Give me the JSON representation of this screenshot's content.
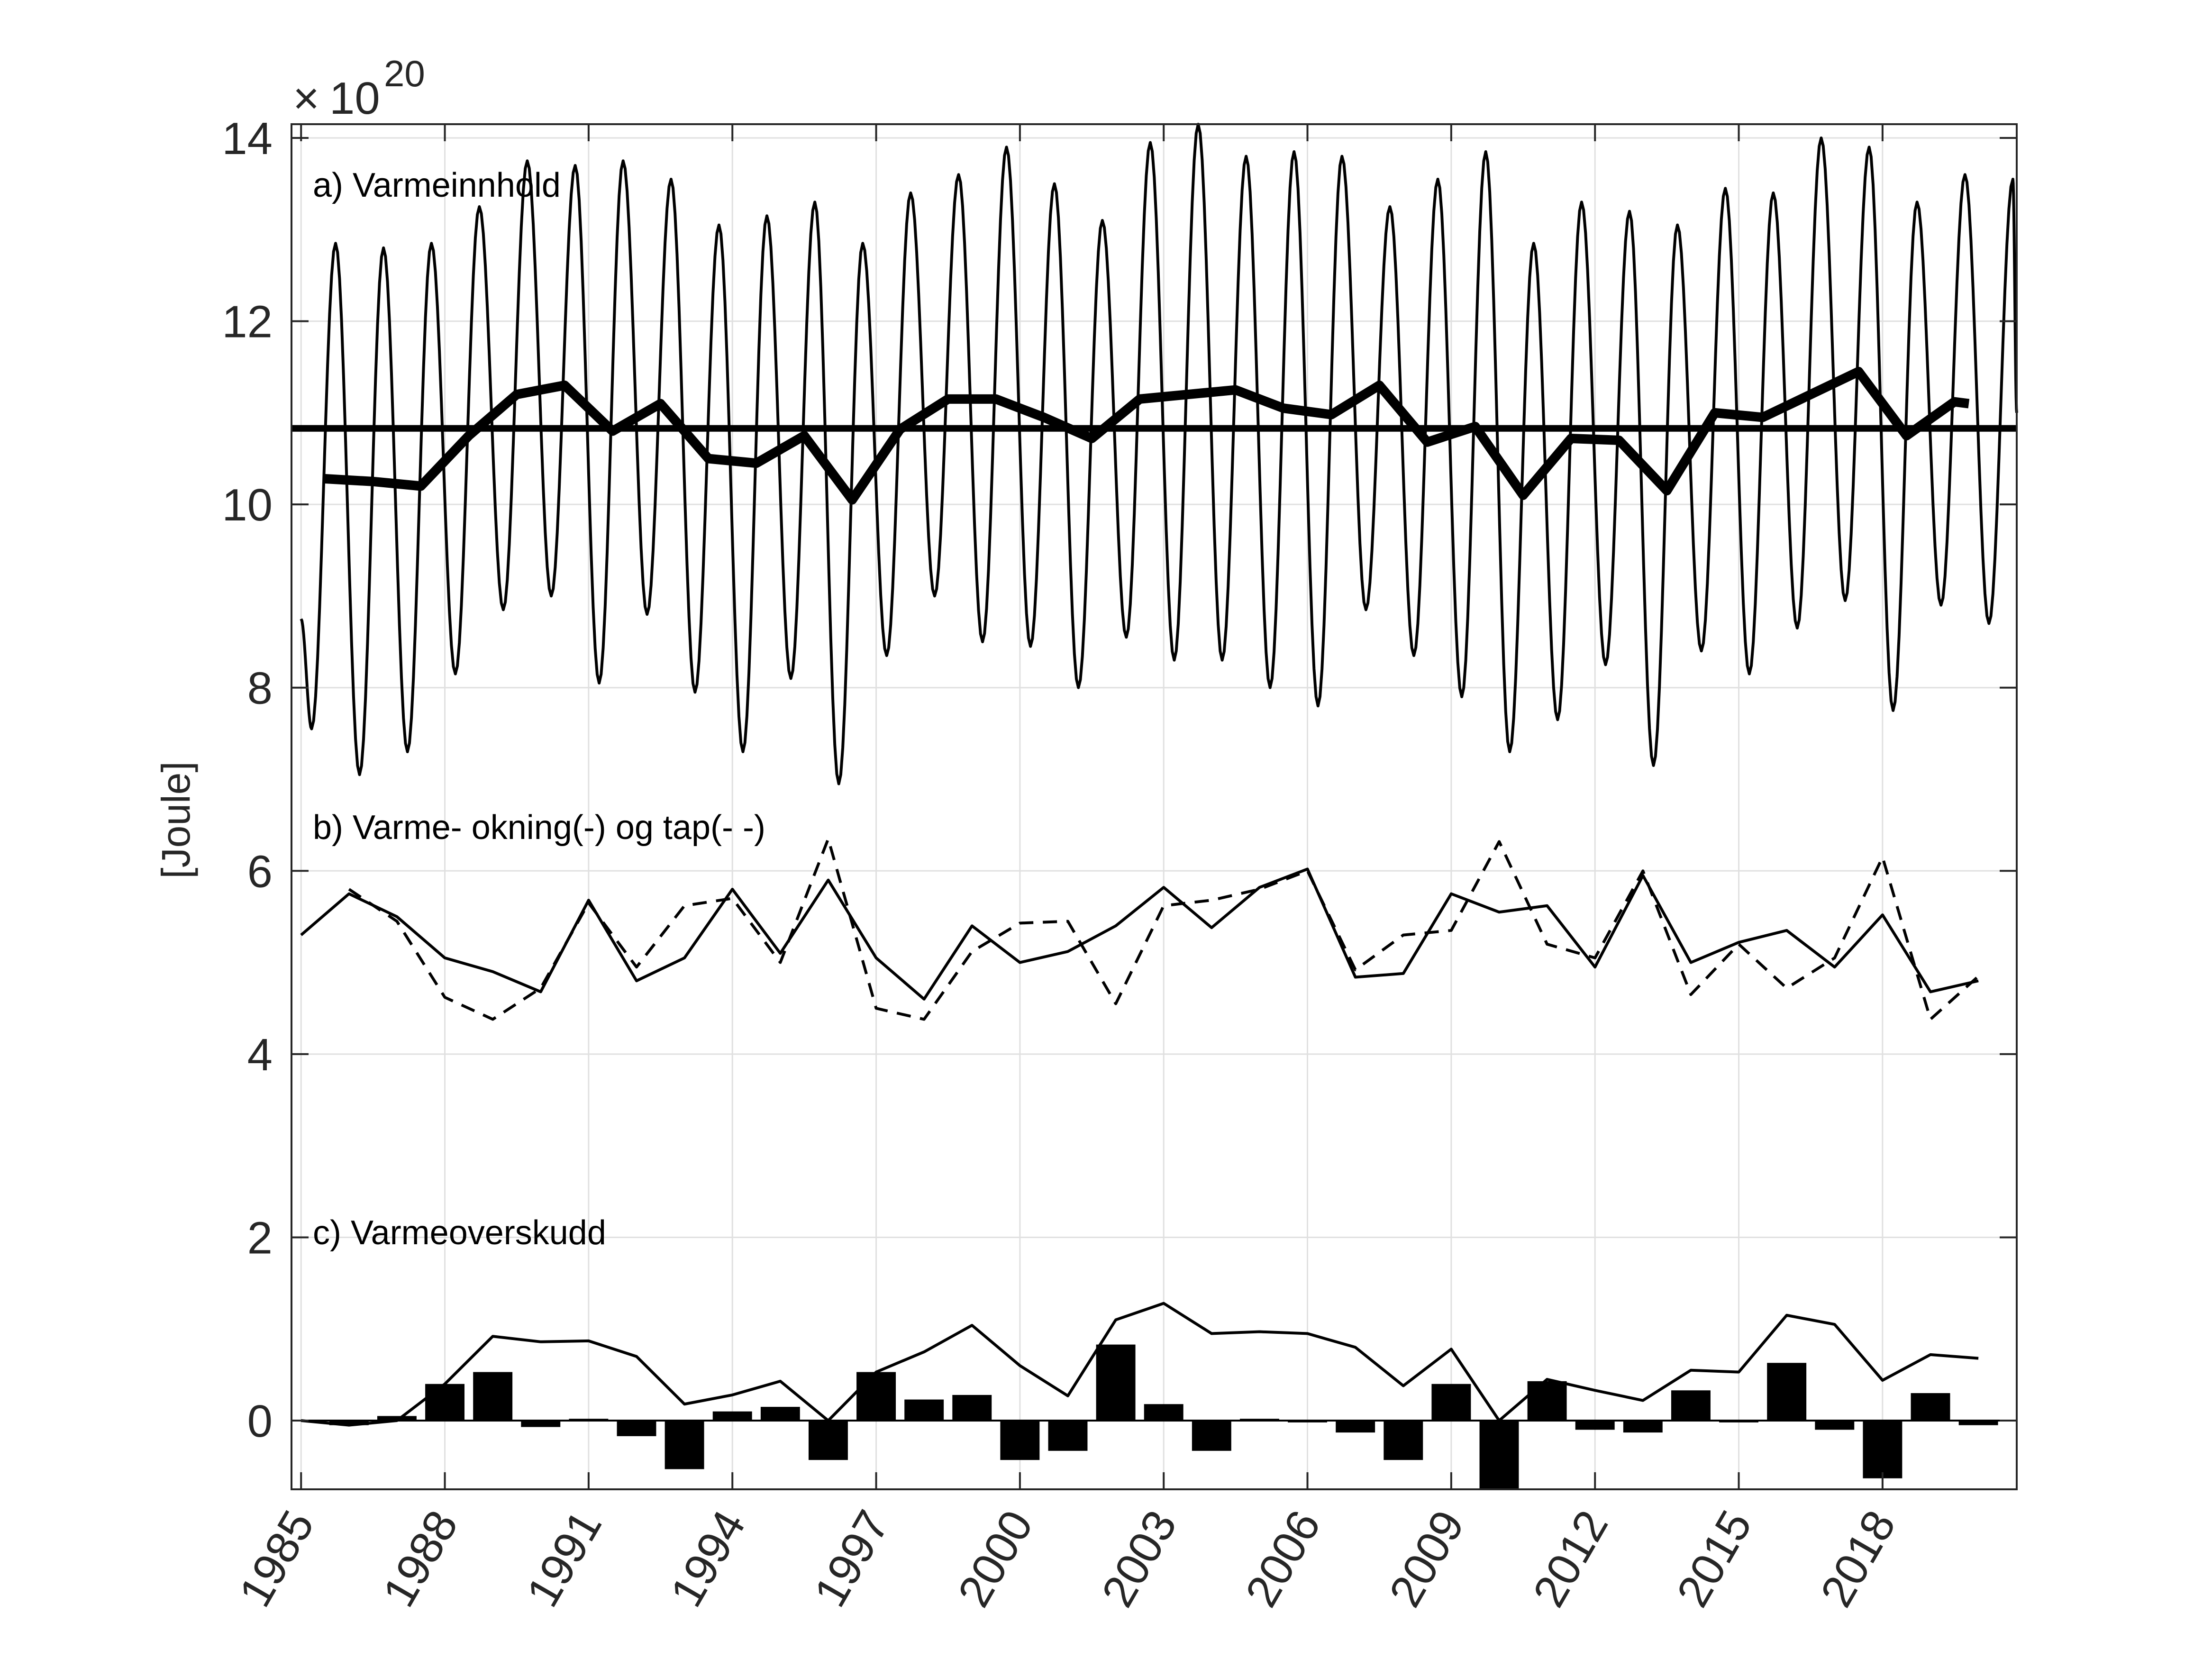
{
  "chart_data": {
    "type": "line",
    "ylabel": "[Joule]",
    "y_exponent_base": "10",
    "y_exponent_power": "20",
    "xlim": [
      1984.8,
      2020.8
    ],
    "ylim": [
      -0.75,
      14.15
    ],
    "grid": true,
    "x_ticks": [
      1985,
      1988,
      1991,
      1994,
      1997,
      2000,
      2003,
      2006,
      2009,
      2012,
      2015,
      2018
    ],
    "x_tick_labels": [
      "1985",
      "1988",
      "1991",
      "1994",
      "1997",
      "2000",
      "2003",
      "2006",
      "2009",
      "2012",
      "2015",
      "2018"
    ],
    "y_ticks": [
      0,
      2,
      4,
      6,
      8,
      10,
      12,
      14
    ],
    "y_tick_labels": [
      "0",
      "2",
      "4",
      "6",
      "8",
      "10",
      "12",
      "14"
    ],
    "panel_labels": {
      "a": "a) Varmeinnhold",
      "b": "b) Varme- okning(-) og tap(- -)",
      "c": "c) Varmeoverskudd"
    },
    "years": [
      1985,
      1986,
      1987,
      1988,
      1989,
      1990,
      1991,
      1992,
      1993,
      1994,
      1995,
      1996,
      1997,
      1998,
      1999,
      2000,
      2001,
      2002,
      2003,
      2004,
      2005,
      2006,
      2007,
      2008,
      2009,
      2010,
      2011,
      2012,
      2013,
      2014,
      2015,
      2016,
      2017,
      2018,
      2019,
      2020
    ],
    "seasonal_peaks": [
      12.85,
      12.8,
      12.85,
      13.25,
      13.75,
      13.7,
      13.75,
      13.55,
      13.05,
      13.15,
      13.3,
      12.85,
      13.4,
      13.6,
      13.9,
      13.5,
      13.1,
      13.95,
      14.15,
      13.8,
      13.85,
      13.8,
      13.25,
      13.55,
      13.85,
      12.85,
      13.3,
      13.2,
      13.05,
      13.45,
      13.4,
      14.0,
      13.9,
      13.3,
      13.6,
      13.55
    ],
    "seasonal_troughs": [
      7.55,
      7.05,
      7.3,
      8.15,
      8.85,
      9.0,
      8.05,
      8.8,
      7.95,
      7.3,
      8.1,
      6.95,
      8.35,
      9.0,
      8.5,
      8.45,
      8.0,
      8.55,
      8.3,
      8.3,
      8.0,
      7.8,
      8.85,
      8.35,
      7.9,
      7.3,
      7.65,
      8.25,
      7.15,
      8.4,
      8.15,
      8.65,
      8.95,
      7.75,
      8.9,
      8.7
    ],
    "series": [
      {
        "key": "annual_mean",
        "x": [
          1985.5,
          1986.5,
          1987.5,
          1988.5,
          1989.5,
          1990.5,
          1991.5,
          1992.5,
          1993.5,
          1994.5,
          1995.5,
          1996.5,
          1997.5,
          1998.5,
          1999.5,
          2000.5,
          2001.5,
          2002.5,
          2003.5,
          2004.5,
          2005.5,
          2006.5,
          2007.5,
          2008.5,
          2009.5,
          2010.5,
          2011.5,
          2012.5,
          2013.5,
          2014.5,
          2015.5,
          2016.5,
          2017.5,
          2018.5,
          2019.5,
          2020.5
        ],
        "values": [
          10.28,
          10.25,
          10.2,
          10.75,
          11.2,
          11.3,
          10.8,
          11.1,
          10.5,
          10.45,
          10.75,
          10.05,
          10.82,
          11.15,
          11.15,
          10.95,
          10.72,
          11.15,
          11.2,
          11.25,
          11.05,
          10.98,
          11.3,
          10.68,
          10.85,
          10.1,
          10.72,
          10.7,
          10.15,
          11.0,
          10.95,
          11.2,
          11.45,
          10.75,
          11.12,
          11.1
        ]
      },
      {
        "key": "long_term_mean",
        "values": [
          10.83
        ]
      },
      {
        "key": "heat_gain",
        "x": [
          1985,
          1986,
          1987,
          1988,
          1989,
          1990,
          1991,
          1992,
          1993,
          1994,
          1995,
          1996,
          1997,
          1998,
          1999,
          2000,
          2001,
          2002,
          2003,
          2004,
          2005,
          2006,
          2007,
          2008,
          2009,
          2010,
          2011,
          2012,
          2013,
          2014,
          2015,
          2016,
          2017,
          2018,
          2019,
          2020
        ],
        "values": [
          5.3,
          5.75,
          5.5,
          5.05,
          4.9,
          4.68,
          5.68,
          4.8,
          5.05,
          5.8,
          5.1,
          5.9,
          5.05,
          4.6,
          5.4,
          5.0,
          5.12,
          5.4,
          5.82,
          5.38,
          5.82,
          6.02,
          4.84,
          4.88,
          5.75,
          5.55,
          5.62,
          4.95,
          5.95,
          5.0,
          5.22,
          5.35,
          4.95,
          5.52,
          4.68,
          4.8
        ]
      },
      {
        "key": "heat_loss",
        "x": [
          1986,
          1987,
          1988,
          1989,
          1990,
          1991,
          1992,
          1993,
          1994,
          1995,
          1996,
          1997,
          1998,
          1999,
          2000,
          2001,
          2002,
          2003,
          2004,
          2005,
          2006,
          2007,
          2008,
          2009,
          2010,
          2011,
          2012,
          2013,
          2014,
          2015,
          2016,
          2017,
          2018,
          2019,
          2020
        ],
        "values": [
          5.8,
          5.45,
          4.62,
          4.38,
          4.72,
          5.65,
          4.95,
          5.62,
          5.7,
          5.0,
          6.35,
          4.5,
          4.38,
          5.12,
          5.43,
          5.45,
          4.55,
          5.62,
          5.68,
          5.8,
          6.0,
          4.92,
          5.3,
          5.35,
          6.32,
          5.2,
          5.05,
          6.0,
          4.65,
          5.2,
          4.72,
          5.05,
          6.15,
          4.38,
          4.85
        ]
      },
      {
        "key": "cumulative_surplus",
        "x": [
          1985,
          1986,
          1987,
          1988,
          1989,
          1990,
          1991,
          1992,
          1993,
          1994,
          1995,
          1996,
          1997,
          1998,
          1999,
          2000,
          2001,
          2002,
          2003,
          2004,
          2005,
          2006,
          2007,
          2008,
          2009,
          2010,
          2011,
          2012,
          2013,
          2014,
          2015,
          2016,
          2017,
          2018,
          2019,
          2020
        ],
        "values": [
          0.0,
          -0.05,
          0.0,
          0.4,
          0.92,
          0.86,
          0.87,
          0.7,
          0.18,
          0.28,
          0.43,
          0.0,
          0.53,
          0.75,
          1.04,
          0.6,
          0.27,
          1.1,
          1.28,
          0.95,
          0.97,
          0.95,
          0.8,
          0.38,
          0.78,
          0.0,
          0.45,
          0.33,
          0.22,
          0.55,
          0.53,
          1.15,
          1.05,
          0.44,
          0.72,
          0.68
        ]
      },
      {
        "key": "annual_surplus",
        "x": [
          1986,
          1987,
          1988,
          1989,
          1990,
          1991,
          1992,
          1993,
          1994,
          1995,
          1996,
          1997,
          1998,
          1999,
          2000,
          2001,
          2002,
          2003,
          2004,
          2005,
          2006,
          2007,
          2008,
          2009,
          2010,
          2011,
          2012,
          2013,
          2014,
          2015,
          2016,
          2017,
          2018,
          2019,
          2020
        ],
        "values": [
          -0.05,
          0.05,
          0.4,
          0.53,
          -0.07,
          0.02,
          -0.17,
          -0.53,
          0.1,
          0.15,
          -0.43,
          0.53,
          0.23,
          0.28,
          -0.43,
          -0.33,
          0.83,
          0.18,
          -0.33,
          0.02,
          -0.02,
          -0.13,
          -0.43,
          0.4,
          -0.78,
          0.43,
          -0.1,
          -0.13,
          0.33,
          -0.02,
          0.63,
          -0.1,
          -0.63,
          0.3,
          -0.05
        ]
      }
    ]
  },
  "colors": {
    "line": "#000000",
    "grid": "#e0e0e0",
    "axis": "#262626"
  }
}
